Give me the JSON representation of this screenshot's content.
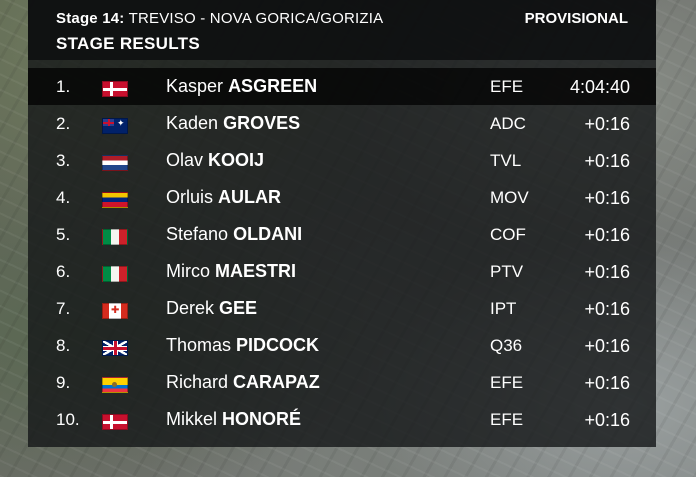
{
  "header": {
    "stage_prefix": "Stage 14:",
    "stage_route": "TREVISO - NOVA GORICA/GORIZIA",
    "status": "PROVISIONAL",
    "title": "STAGE RESULTS"
  },
  "results": [
    {
      "pos": "1.",
      "flag": "denmark-flag",
      "first": "Kasper",
      "last": "ASGREEN",
      "team": "EFE",
      "time": "4:04:40"
    },
    {
      "pos": "2.",
      "flag": "australia-flag",
      "first": "Kaden",
      "last": "GROVES",
      "team": "ADC",
      "time": "+0:16"
    },
    {
      "pos": "3.",
      "flag": "netherlands-flag",
      "first": "Olav",
      "last": "KOOIJ",
      "team": "TVL",
      "time": "+0:16"
    },
    {
      "pos": "4.",
      "flag": "venezuela-flag",
      "first": "Orluis",
      "last": "AULAR",
      "team": "MOV",
      "time": "+0:16"
    },
    {
      "pos": "5.",
      "flag": "italy-flag",
      "first": "Stefano",
      "last": "OLDANI",
      "team": "COF",
      "time": "+0:16"
    },
    {
      "pos": "6.",
      "flag": "italy-flag",
      "first": "Mirco",
      "last": "MAESTRI",
      "team": "PTV",
      "time": "+0:16"
    },
    {
      "pos": "7.",
      "flag": "canada-flag",
      "first": "Derek",
      "last": "GEE",
      "team": "IPT",
      "time": "+0:16"
    },
    {
      "pos": "8.",
      "flag": "great-britain-flag",
      "first": "Thomas",
      "last": "PIDCOCK",
      "team": "Q36",
      "time": "+0:16"
    },
    {
      "pos": "9.",
      "flag": "ecuador-flag",
      "first": "Richard",
      "last": "CARAPAZ",
      "team": "EFE",
      "time": "+0:16"
    },
    {
      "pos": "10.",
      "flag": "denmark-flag",
      "first": "Mikkel",
      "last": "HONORÉ",
      "team": "EFE",
      "time": "+0:16"
    }
  ]
}
